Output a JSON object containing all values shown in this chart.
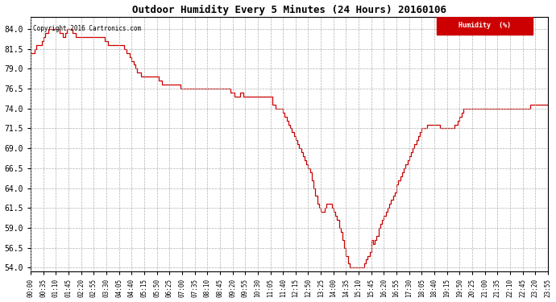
{
  "title": "Outdoor Humidity Every 5 Minutes (24 Hours) 20160106",
  "copyright": "Copyright 2016 Cartronics.com",
  "legend_label": "Humidity  (%)",
  "line_color": "#cc0000",
  "background_color": "#ffffff",
  "plot_bg_color": "#ffffff",
  "grid_color": "#b0b0b0",
  "ylim": [
    53.5,
    85.5
  ],
  "yticks": [
    54.0,
    56.5,
    59.0,
    61.5,
    64.0,
    66.5,
    69.0,
    71.5,
    74.0,
    76.5,
    79.0,
    81.5,
    84.0
  ],
  "xtick_labels": [
    "00:00",
    "00:35",
    "01:10",
    "01:45",
    "02:20",
    "02:55",
    "03:30",
    "04:05",
    "04:40",
    "05:15",
    "05:50",
    "06:25",
    "07:00",
    "07:35",
    "08:10",
    "08:45",
    "09:20",
    "09:55",
    "10:30",
    "11:05",
    "11:40",
    "12:15",
    "12:50",
    "13:25",
    "14:00",
    "14:35",
    "15:10",
    "15:45",
    "16:20",
    "16:55",
    "17:30",
    "18:05",
    "18:40",
    "19:15",
    "19:50",
    "20:25",
    "21:00",
    "21:35",
    "22:10",
    "22:45",
    "23:20",
    "23:55"
  ],
  "humidity": [
    81.0,
    81.0,
    81.5,
    82.0,
    82.0,
    82.0,
    82.5,
    83.0,
    83.5,
    83.5,
    84.0,
    84.0,
    84.0,
    84.0,
    84.0,
    84.0,
    83.5,
    83.5,
    83.0,
    83.5,
    84.0,
    84.0,
    84.0,
    83.5,
    83.5,
    83.0,
    83.0,
    83.0,
    83.0,
    83.0,
    83.0,
    83.0,
    83.0,
    83.0,
    83.0,
    83.0,
    83.0,
    83.0,
    83.0,
    83.0,
    83.0,
    82.5,
    82.5,
    82.0,
    82.0,
    82.0,
    82.0,
    82.0,
    82.0,
    82.0,
    82.0,
    82.0,
    81.5,
    81.0,
    81.0,
    80.5,
    80.0,
    79.5,
    79.0,
    78.5,
    78.5,
    78.0,
    78.0,
    78.0,
    78.0,
    78.0,
    78.0,
    78.0,
    78.0,
    78.0,
    78.0,
    77.5,
    77.5,
    77.0,
    77.0,
    77.0,
    77.0,
    77.0,
    77.0,
    77.0,
    77.0,
    77.0,
    77.0,
    76.5,
    76.5,
    76.5,
    76.5,
    76.5,
    76.5,
    76.5,
    76.5,
    76.5,
    76.5,
    76.5,
    76.5,
    76.5,
    76.5,
    76.5,
    76.5,
    76.5,
    76.5,
    76.5,
    76.5,
    76.5,
    76.5,
    76.5,
    76.5,
    76.5,
    76.5,
    76.5,
    76.5,
    76.0,
    76.0,
    75.5,
    75.5,
    75.5,
    76.0,
    76.0,
    75.5,
    75.5,
    75.5,
    75.5,
    75.5,
    75.5,
    75.5,
    75.5,
    75.5,
    75.5,
    75.5,
    75.5,
    75.5,
    75.5,
    75.5,
    75.5,
    74.5,
    74.5,
    74.0,
    74.0,
    74.0,
    74.0,
    73.5,
    73.0,
    72.5,
    72.0,
    71.5,
    71.0,
    70.5,
    70.0,
    69.5,
    69.0,
    68.5,
    68.0,
    67.5,
    67.0,
    66.5,
    66.0,
    65.0,
    64.0,
    63.0,
    62.0,
    61.5,
    61.0,
    61.0,
    61.5,
    62.0,
    62.0,
    62.0,
    61.5,
    61.0,
    60.5,
    60.0,
    59.0,
    58.5,
    57.5,
    56.5,
    55.5,
    54.5,
    54.0,
    54.0,
    54.0,
    54.0,
    54.0,
    54.0,
    54.0,
    54.0,
    54.5,
    55.0,
    55.5,
    56.0,
    57.5,
    57.0,
    57.5,
    58.0,
    59.0,
    59.5,
    60.0,
    60.5,
    61.0,
    61.5,
    62.0,
    62.5,
    63.0,
    63.5,
    64.5,
    65.0,
    65.5,
    66.0,
    66.5,
    67.0,
    67.5,
    68.0,
    68.5,
    69.0,
    69.5,
    70.0,
    70.5,
    71.0,
    71.5,
    71.5,
    71.5,
    72.0,
    72.0,
    72.0,
    72.0,
    72.0,
    72.0,
    72.0,
    71.5,
    71.5,
    71.5,
    71.5,
    71.5,
    71.5,
    71.5,
    71.5,
    72.0,
    72.0,
    72.5,
    73.0,
    73.5,
    74.0,
    74.0,
    74.0,
    74.0,
    74.0,
    74.0,
    74.0,
    74.0,
    74.0,
    74.0,
    74.0,
    74.0,
    74.0,
    74.0,
    74.0,
    74.0,
    74.0,
    74.0,
    74.0,
    74.0,
    74.0,
    74.0,
    74.0,
    74.0,
    74.0,
    74.0,
    74.0,
    74.0,
    74.0,
    74.0,
    74.0,
    74.0,
    74.0,
    74.0,
    74.0,
    74.0,
    74.0,
    74.5,
    74.5,
    74.5,
    74.5,
    74.5,
    74.5,
    74.5,
    74.5,
    74.5,
    74.5,
    74.5
  ]
}
